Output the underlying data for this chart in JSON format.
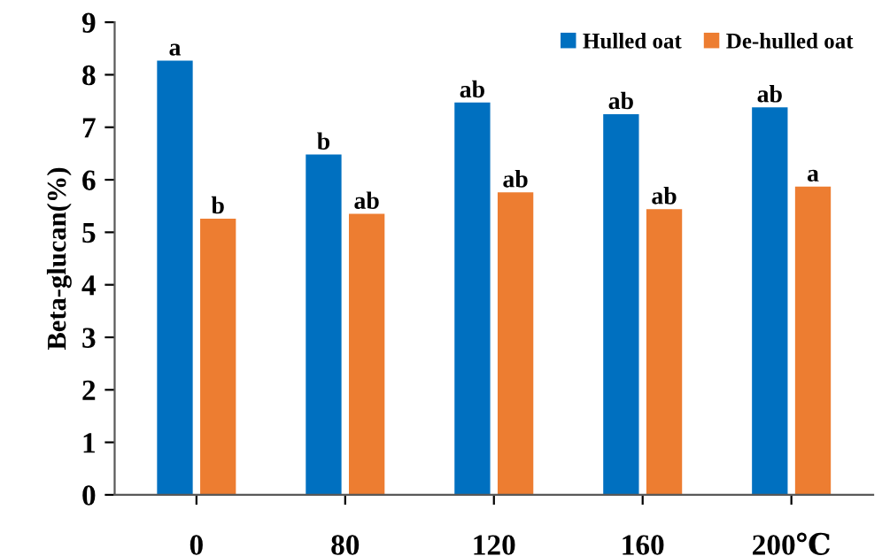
{
  "chart_data": {
    "type": "bar",
    "ylabel": "Beta-glucan(%)",
    "categories": [
      "0",
      "80",
      "120",
      "160",
      "200℃"
    ],
    "series": [
      {
        "name": "Hulled oat",
        "color": "#0070c0",
        "values": [
          8.27,
          6.48,
          7.47,
          7.25,
          7.38
        ],
        "value_labels": [
          "a",
          "b",
          "ab",
          "ab",
          "ab"
        ]
      },
      {
        "name": "De-hulled oat",
        "color": "#ed7d31",
        "values": [
          5.26,
          5.35,
          5.76,
          5.44,
          5.87
        ],
        "value_labels": [
          "b",
          "ab",
          "ab",
          "ab",
          "a"
        ]
      }
    ],
    "ylim": [
      0,
      9
    ],
    "yticks": [
      0,
      1,
      2,
      3,
      4,
      5,
      6,
      7,
      8,
      9
    ],
    "grid": false,
    "legend": "top right"
  }
}
